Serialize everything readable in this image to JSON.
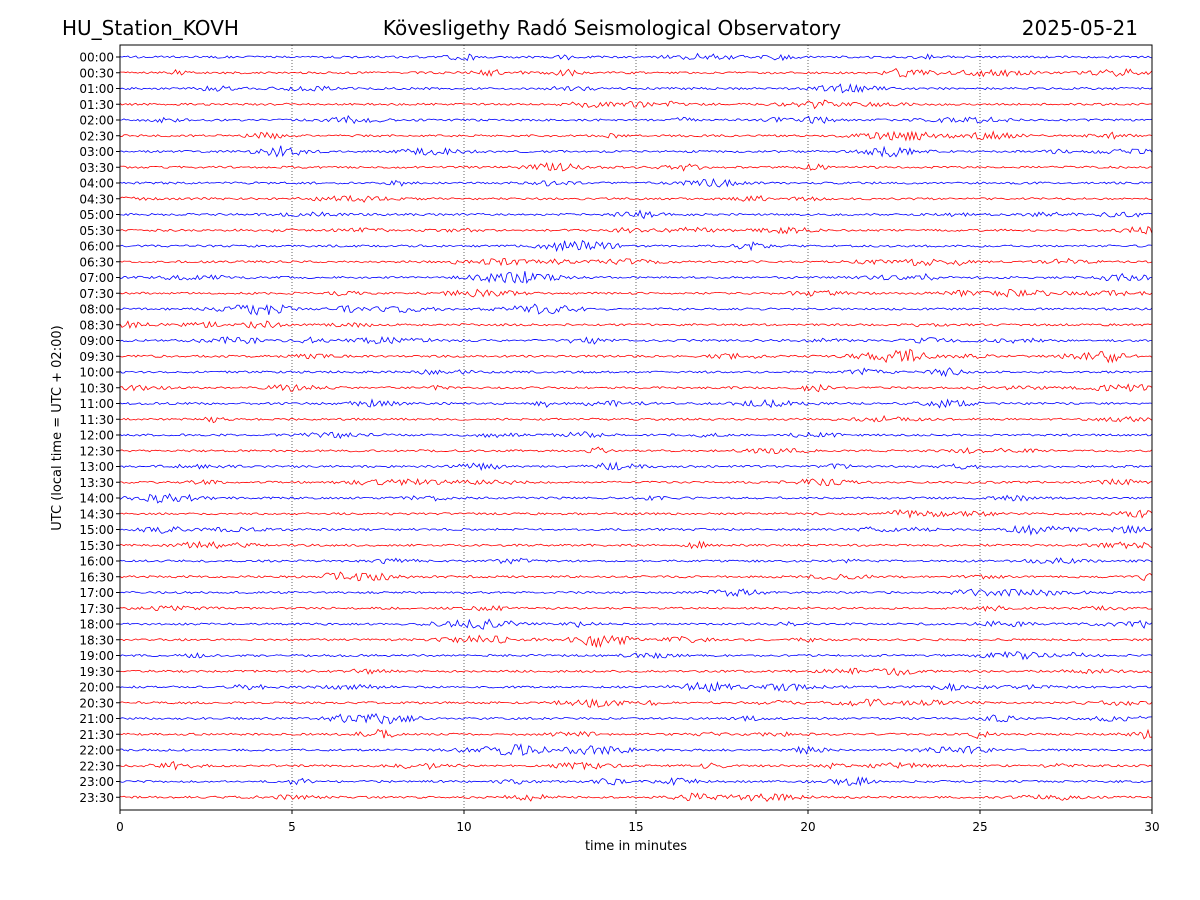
{
  "header": {
    "station": "HU_Station_KOVH",
    "observatory": "Kövesligethy Radó Seismological Observatory",
    "date": "2025-05-21"
  },
  "chart_data": {
    "type": "line",
    "title": "Kövesligethy Radó Seismological Observatory",
    "xlabel": "time in minutes",
    "ylabel": "UTC (local time = UTC + 02:00)",
    "xlim": [
      0,
      30
    ],
    "xticks": [
      0,
      5,
      10,
      15,
      20,
      25,
      30
    ],
    "vertical_grid": "dotted",
    "rows": [
      "00:00",
      "00:30",
      "01:00",
      "01:30",
      "02:00",
      "02:30",
      "03:00",
      "03:30",
      "04:00",
      "04:30",
      "05:00",
      "05:30",
      "06:00",
      "06:30",
      "07:00",
      "07:30",
      "08:00",
      "08:30",
      "09:00",
      "09:30",
      "10:00",
      "10:30",
      "11:00",
      "11:30",
      "12:00",
      "12:30",
      "13:00",
      "13:30",
      "14:00",
      "14:30",
      "15:00",
      "15:30",
      "16:00",
      "16:30",
      "17:00",
      "17:30",
      "18:00",
      "18:30",
      "19:00",
      "19:30",
      "20:00",
      "20:30",
      "21:00",
      "21:30",
      "22:00",
      "22:30",
      "23:00",
      "23:30"
    ],
    "colors": [
      "#0000ff",
      "#ff0000"
    ],
    "trace_color_rule": "alternating by row: blue on the hour, red on the half hour",
    "signal": "low-amplitude background seismic noise on every trace"
  }
}
